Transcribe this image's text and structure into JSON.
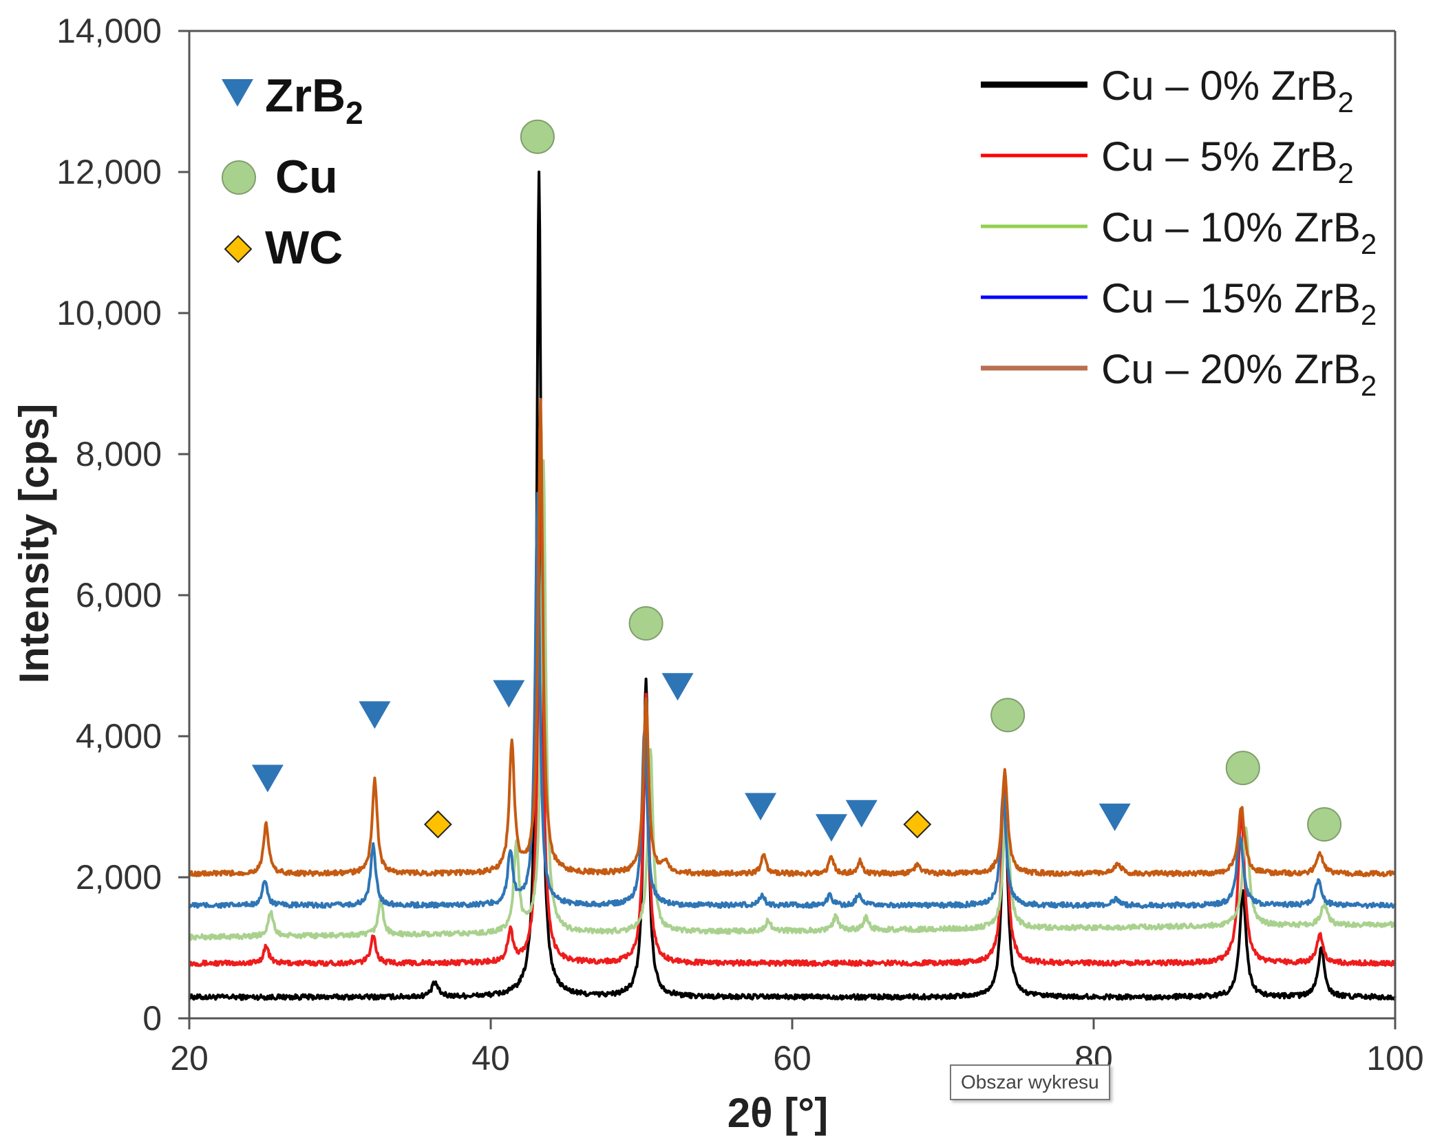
{
  "chart_data": {
    "type": "line",
    "title": "",
    "xlabel": "2θ [°]",
    "ylabel": "Intensity [cps]",
    "xlim": [
      20,
      100
    ],
    "ylim": [
      0,
      14000
    ],
    "xticks": [
      20,
      40,
      60,
      80,
      100
    ],
    "xtick_labels": [
      "20",
      "40",
      "60",
      "80",
      "100"
    ],
    "yticks": [
      0,
      2000,
      4000,
      6000,
      8000,
      10000,
      12000,
      14000
    ],
    "ytick_labels": [
      "0",
      "2,000",
      "4,000",
      "6,000",
      "8,000",
      "10,000",
      "12,000",
      "14,000"
    ],
    "grid": false,
    "legend_position": "top-right",
    "series": [
      {
        "name": "Cu – 0% ZrB2",
        "label_main": "Cu – 0% ZrB",
        "label_sub": "2",
        "color": "#000000",
        "legend_color": "#000000",
        "baseline": 300,
        "peaks": [
          [
            36.3,
            200,
            0.25
          ],
          [
            43.2,
            11700,
            0.18
          ],
          [
            50.3,
            4500,
            0.2
          ],
          [
            74.1,
            3000,
            0.22
          ],
          [
            89.9,
            1500,
            0.25
          ],
          [
            95.1,
            700,
            0.25
          ]
        ]
      },
      {
        "name": "Cu – 5% ZrB2",
        "label_main": "Cu – 5% ZrB",
        "label_sub": "2",
        "color": "#ee1c1c",
        "legend_color": "#ff0000",
        "baseline": 780,
        "peaks": [
          [
            25.1,
            250,
            0.2
          ],
          [
            32.2,
            400,
            0.2
          ],
          [
            41.3,
            450,
            0.2
          ],
          [
            43.3,
            7500,
            0.18
          ],
          [
            50.3,
            3800,
            0.2
          ],
          [
            74.1,
            2700,
            0.22
          ],
          [
            89.8,
            2200,
            0.25
          ],
          [
            95.0,
            400,
            0.25
          ]
        ]
      },
      {
        "name": "Cu – 10% ZrB2",
        "label_main": "Cu – 10% ZrB",
        "label_sub": "2",
        "color": "#a9d18e",
        "legend_color": "#92d050",
        "baseline": 1150,
        "slope": 180,
        "peaks": [
          [
            25.4,
            350,
            0.2
          ],
          [
            32.7,
            500,
            0.2
          ],
          [
            41.7,
            1250,
            0.2
          ],
          [
            43.5,
            6700,
            0.18
          ],
          [
            50.6,
            2600,
            0.2
          ],
          [
            58.4,
            150,
            0.2
          ],
          [
            62.9,
            200,
            0.2
          ],
          [
            64.9,
            180,
            0.2
          ],
          [
            74.2,
            1900,
            0.22
          ],
          [
            90.1,
            1400,
            0.25
          ],
          [
            95.3,
            300,
            0.25
          ]
        ]
      },
      {
        "name": "Cu – 15% ZrB2",
        "label_main": "Cu – 15% ZrB",
        "label_sub": "2",
        "color": "#2e75b6",
        "legend_color": "#0000ff",
        "baseline": 1600,
        "peaks": [
          [
            25.0,
            350,
            0.2
          ],
          [
            32.2,
            850,
            0.2
          ],
          [
            41.3,
            750,
            0.2
          ],
          [
            43.1,
            5800,
            0.18
          ],
          [
            50.2,
            2500,
            0.2
          ],
          [
            58.0,
            150,
            0.2
          ],
          [
            62.5,
            150,
            0.2
          ],
          [
            64.4,
            150,
            0.2
          ],
          [
            74.0,
            1600,
            0.22
          ],
          [
            81.5,
            100,
            0.25
          ],
          [
            89.7,
            1000,
            0.25
          ],
          [
            94.9,
            350,
            0.25
          ]
        ]
      },
      {
        "name": "Cu – 20% ZrB2",
        "label_main": "Cu – 20% ZrB",
        "label_sub": "2",
        "color": "#c55a11",
        "legend_color": "#b87050",
        "baseline": 2050,
        "peaks": [
          [
            25.1,
            700,
            0.2
          ],
          [
            32.3,
            1350,
            0.2
          ],
          [
            41.4,
            1850,
            0.2
          ],
          [
            43.3,
            6700,
            0.18
          ],
          [
            50.3,
            2500,
            0.2
          ],
          [
            51.6,
            150,
            0.25
          ],
          [
            58.1,
            250,
            0.2
          ],
          [
            62.6,
            230,
            0.2
          ],
          [
            64.5,
            180,
            0.2
          ],
          [
            68.3,
            120,
            0.25
          ],
          [
            74.1,
            1450,
            0.22
          ],
          [
            81.6,
            150,
            0.25
          ],
          [
            89.8,
            950,
            0.25
          ],
          [
            95.0,
            300,
            0.25
          ]
        ]
      }
    ],
    "phase_markers": {
      "ZrB2": {
        "label_main": "ZrB",
        "label_sub": "2",
        "color": "#2e75b6",
        "points": [
          [
            25.2,
            3400
          ],
          [
            32.3,
            4300
          ],
          [
            41.2,
            4600
          ],
          [
            52.4,
            4700
          ],
          [
            57.9,
            3000
          ],
          [
            62.6,
            2700
          ],
          [
            64.6,
            2900
          ],
          [
            81.4,
            2850
          ]
        ]
      },
      "Cu": {
        "label": "Cu",
        "color": "#a9d18e",
        "points": [
          [
            43.1,
            12500
          ],
          [
            50.3,
            5600
          ],
          [
            74.3,
            4300
          ],
          [
            89.9,
            3550
          ],
          [
            95.3,
            2750
          ]
        ]
      },
      "WC": {
        "label": "WC",
        "color": "#ffc000",
        "points": [
          [
            36.5,
            2750
          ],
          [
            68.3,
            2750
          ]
        ]
      }
    },
    "annotations": []
  },
  "tooltip": {
    "text": "Obszar wykresu"
  }
}
